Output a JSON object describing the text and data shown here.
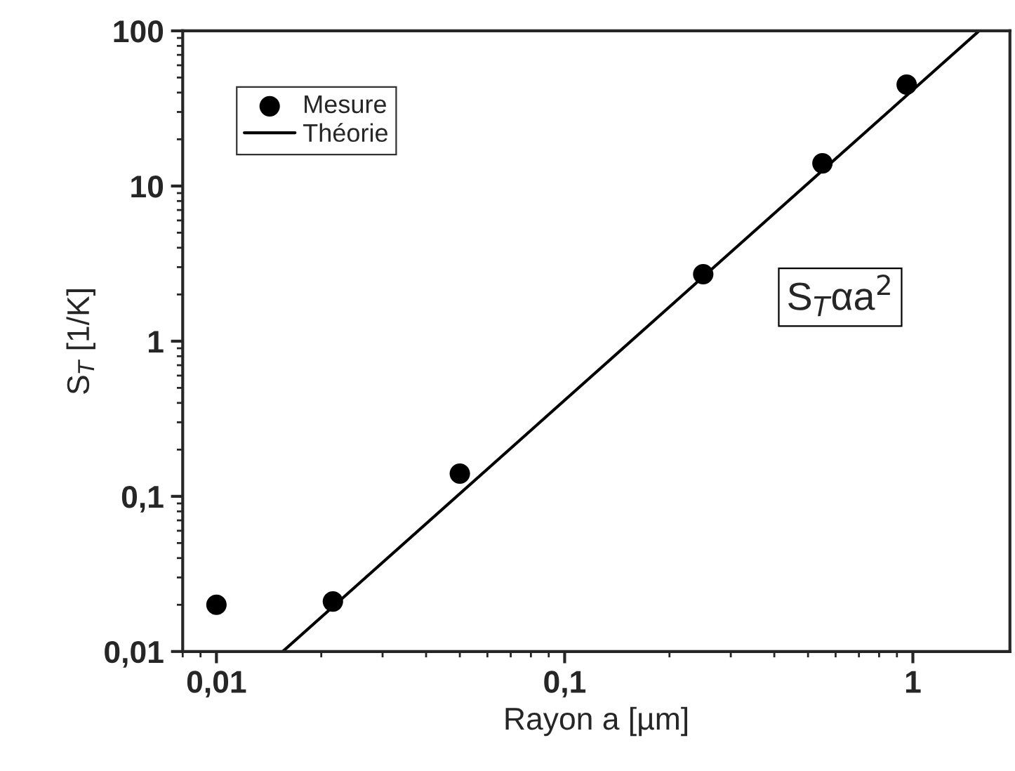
{
  "chart_data": {
    "type": "scatter",
    "xlabel": "Rayon a [µm]",
    "ylabel": "S$_{T}$ [1/K]",
    "log": "xy",
    "xlim": [
      0.008,
      1.9
    ],
    "ylim": [
      0.01,
      100
    ],
    "xticks": [
      {
        "value": 0.01,
        "label": "0,01"
      },
      {
        "value": 0.1,
        "label": "0,1"
      },
      1
    ],
    "yticks": [
      {
        "value": 0.01,
        "label": "0,01"
      },
      {
        "value": 0.1,
        "label": "0,1"
      },
      1,
      10,
      100
    ],
    "grid": false,
    "legend": "top left",
    "annotations": [
      "S$_{T}$αa$^{2}$"
    ],
    "series": [
      {
        "name": "Mesure",
        "marker": "circle",
        "color": "#000000",
        "x": [
          0.01,
          0.0216,
          0.05,
          0.25,
          0.55,
          0.96
        ],
        "values": [
          0.02,
          0.021,
          0.14,
          2.7,
          14,
          45
        ]
      },
      {
        "name": "Théorie",
        "type": "line",
        "marker": "none",
        "line_style": "solid",
        "color": "#000000",
        "x": [
          0.0155,
          1.55
        ],
        "values": [
          0.01,
          100
        ]
      }
    ]
  }
}
